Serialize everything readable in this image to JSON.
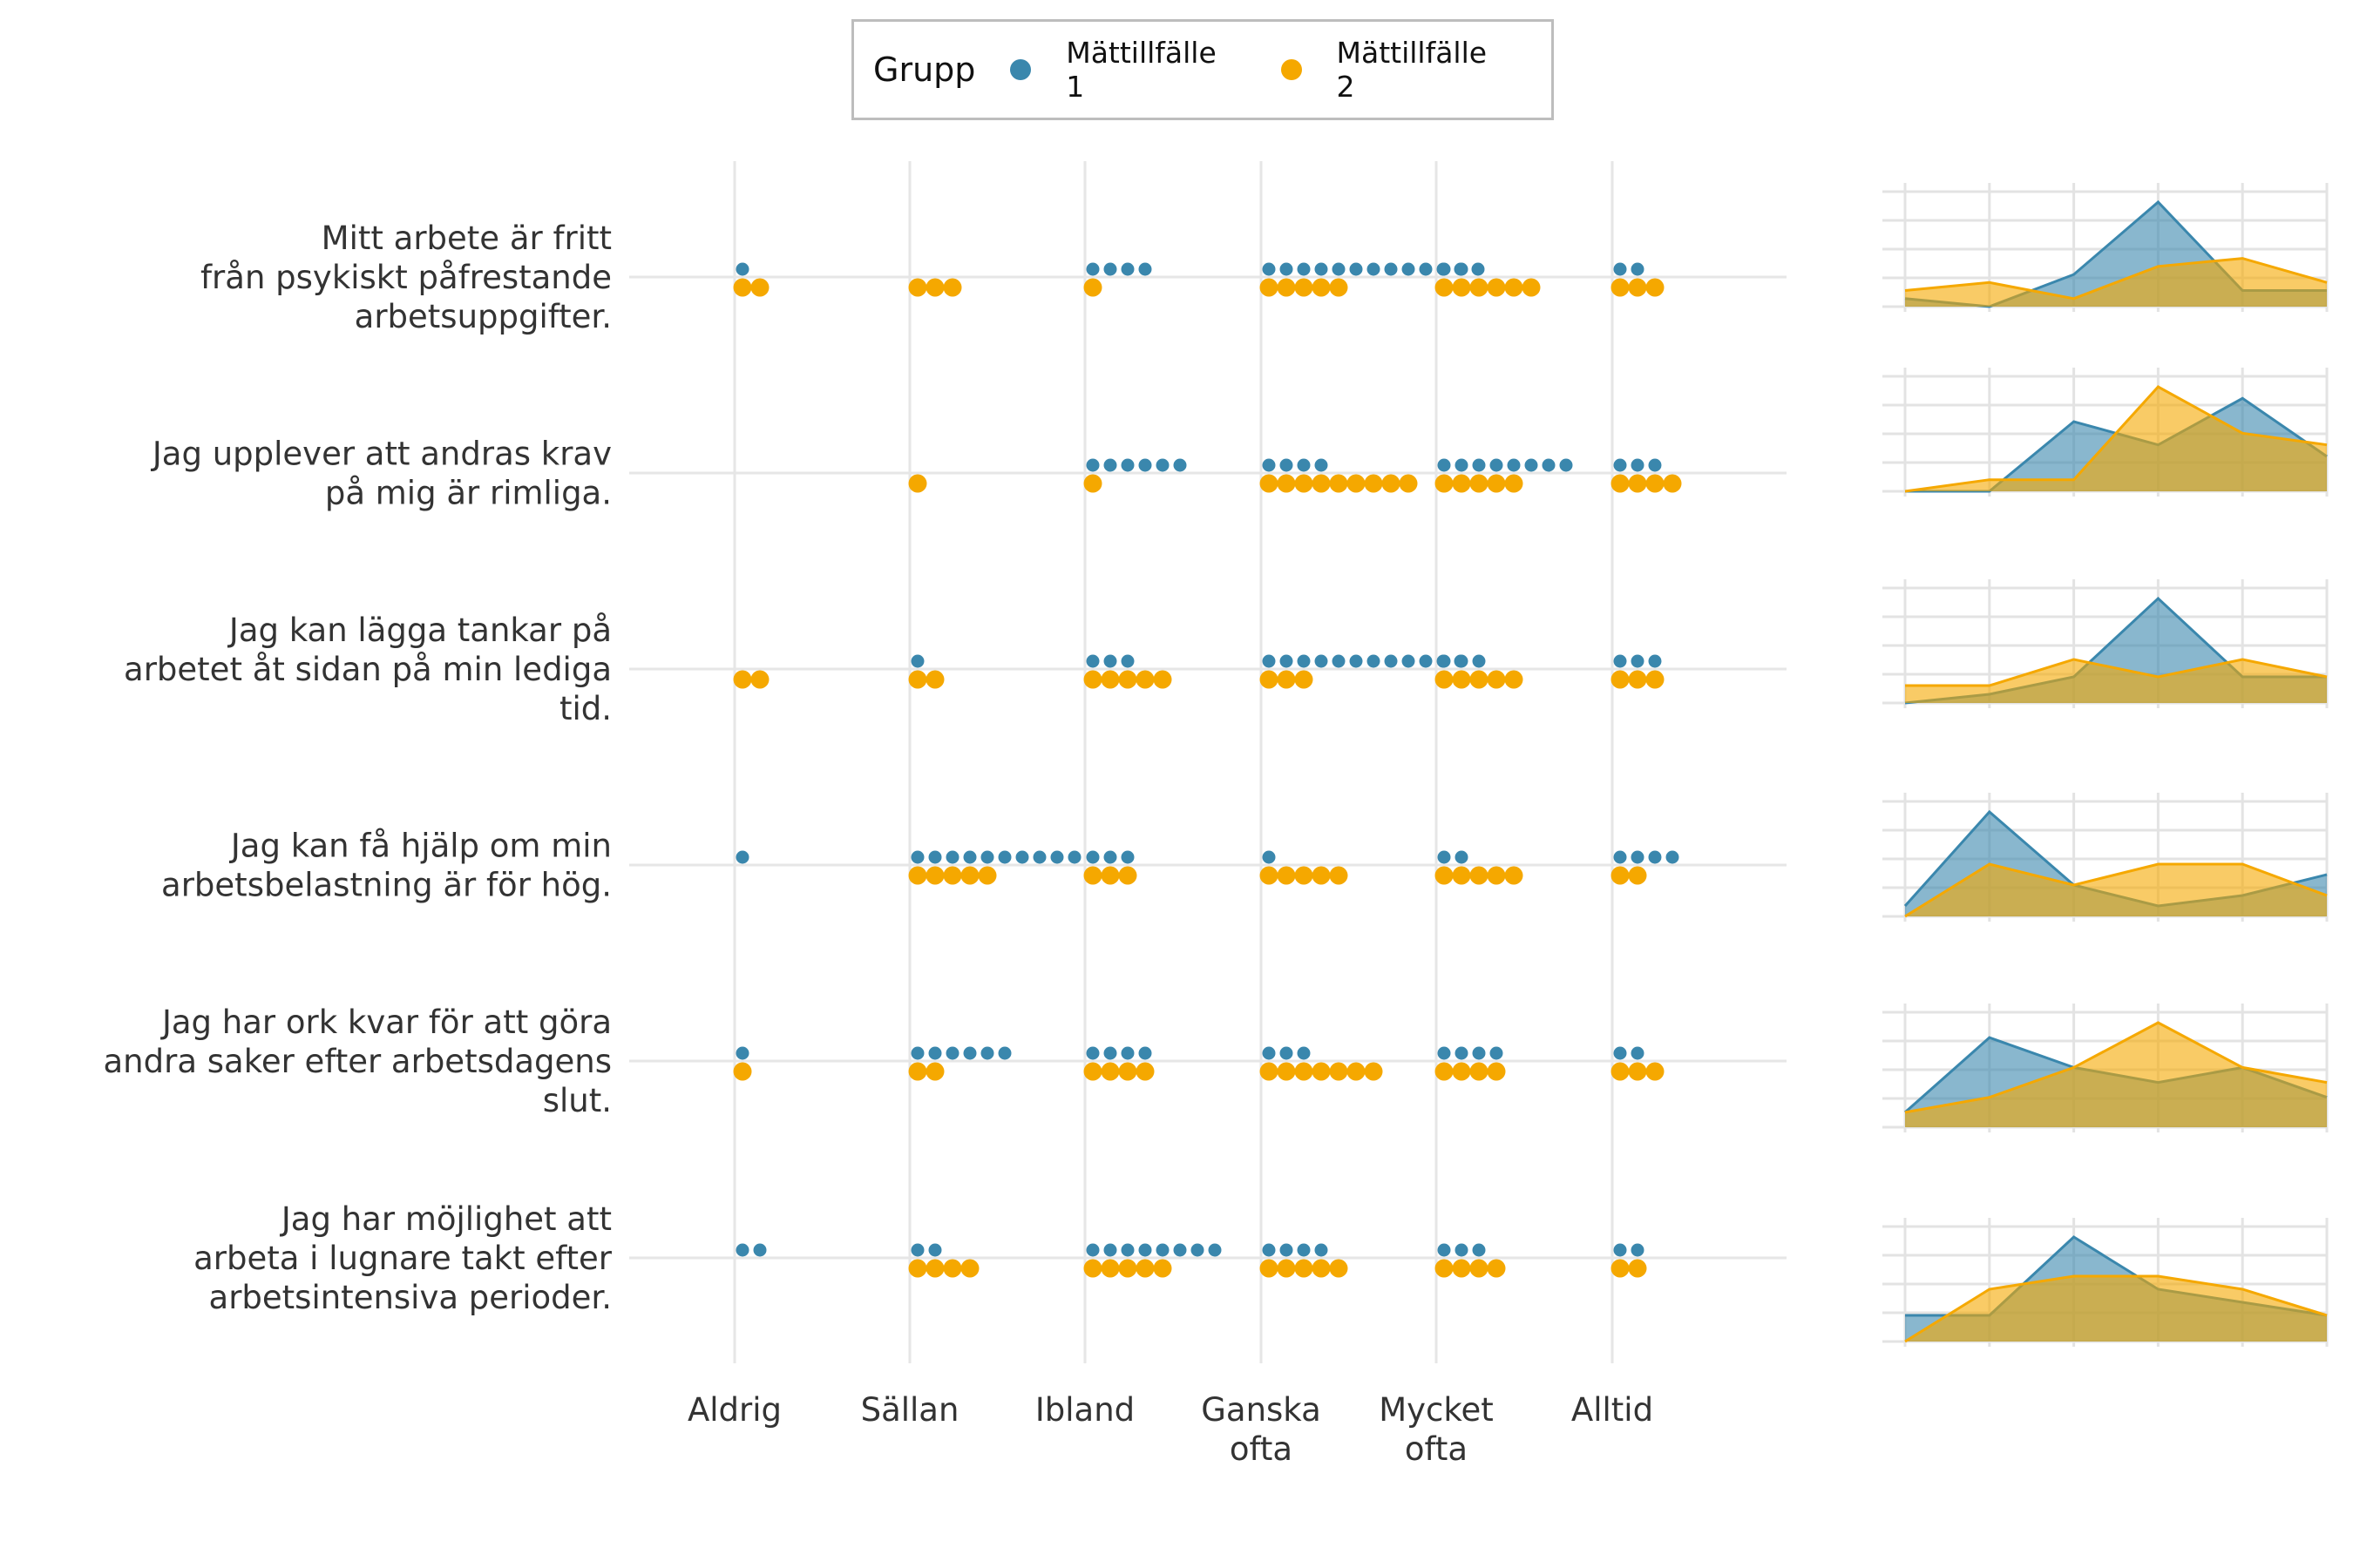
{
  "chart_data": {
    "type": "dot-strip-with-density",
    "legend": {
      "title": "Grupp",
      "placement": "top",
      "entries": [
        {
          "name": "Mättillfälle 1",
          "color": "#3a87ad"
        },
        {
          "name": "Mättillfälle 2",
          "color": "#f5a800"
        }
      ]
    },
    "categories": [
      "Aldrig",
      "Sällan",
      "Ibland",
      "Ganska ofta",
      "Mycket ofta",
      "Alltid"
    ],
    "category_lines": [
      [
        "Aldrig"
      ],
      [
        "Sällan"
      ],
      [
        "Ibland"
      ],
      [
        "Ganska",
        "ofta"
      ],
      [
        "Mycket",
        "ofta"
      ],
      [
        "Alltid"
      ]
    ],
    "grid": true,
    "questions": [
      {
        "lines": [
          "Mitt arbete är fritt",
          "från psykiskt påfrestande",
          "arbetsuppgifter."
        ],
        "series": [
          {
            "name": "Mättillfälle 1",
            "values": [
              1,
              0,
              4,
              13,
              2,
              2
            ]
          },
          {
            "name": "Mättillfälle 2",
            "values": [
              2,
              3,
              1,
              5,
              6,
              3
            ]
          }
        ]
      },
      {
        "lines": [
          "Jag upplever att andras krav",
          "på mig är rimliga."
        ],
        "series": [
          {
            "name": "Mättillfälle 1",
            "values": [
              0,
              0,
              6,
              4,
              8,
              3
            ]
          },
          {
            "name": "Mättillfälle 2",
            "values": [
              0,
              1,
              1,
              9,
              5,
              4
            ]
          }
        ]
      },
      {
        "lines": [
          "Jag kan lägga tankar på",
          "arbetet åt sidan på min lediga",
          "tid."
        ],
        "series": [
          {
            "name": "Mättillfälle 1",
            "values": [
              0,
              1,
              3,
              12,
              3,
              3
            ]
          },
          {
            "name": "Mättillfälle 2",
            "values": [
              2,
              2,
              5,
              3,
              5,
              3
            ]
          }
        ]
      },
      {
        "lines": [
          "Jag kan få hjälp om min",
          "arbetsbelastning är för hög."
        ],
        "series": [
          {
            "name": "Mättillfälle 1",
            "values": [
              1,
              10,
              3,
              1,
              2,
              4
            ]
          },
          {
            "name": "Mättillfälle 2",
            "values": [
              0,
              5,
              3,
              5,
              5,
              2
            ]
          }
        ]
      },
      {
        "lines": [
          "Jag har ork kvar för att göra",
          "andra saker efter arbetsdagens",
          "slut."
        ],
        "series": [
          {
            "name": "Mättillfälle 1",
            "values": [
              1,
              6,
              4,
              3,
              4,
              2
            ]
          },
          {
            "name": "Mättillfälle 2",
            "values": [
              1,
              2,
              4,
              7,
              4,
              3
            ]
          }
        ]
      },
      {
        "lines": [
          "Jag har möjlighet att",
          "arbeta i lugnare takt efter",
          "arbetsintensiva perioder."
        ],
        "series": [
          {
            "name": "Mättillfälle 1",
            "values": [
              2,
              2,
              8,
              4,
              3,
              2
            ]
          },
          {
            "name": "Mättillfälle 2",
            "values": [
              0,
              4,
              5,
              5,
              4,
              2
            ]
          }
        ]
      }
    ]
  }
}
